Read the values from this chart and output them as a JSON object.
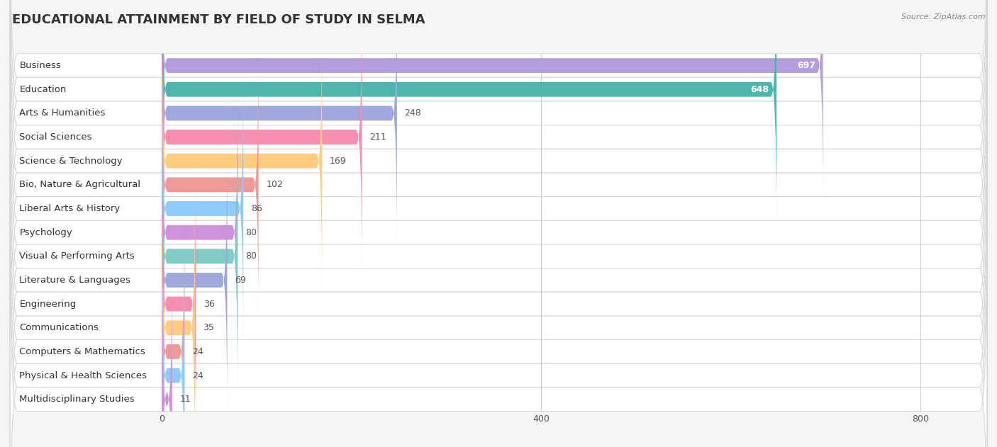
{
  "title": "EDUCATIONAL ATTAINMENT BY FIELD OF STUDY IN SELMA",
  "source": "Source: ZipAtlas.com",
  "categories": [
    "Business",
    "Education",
    "Arts & Humanities",
    "Social Sciences",
    "Science & Technology",
    "Bio, Nature & Agricultural",
    "Liberal Arts & History",
    "Psychology",
    "Visual & Performing Arts",
    "Literature & Languages",
    "Engineering",
    "Communications",
    "Computers & Mathematics",
    "Physical & Health Sciences",
    "Multidisciplinary Studies"
  ],
  "values": [
    697,
    648,
    248,
    211,
    169,
    102,
    86,
    80,
    80,
    69,
    36,
    35,
    24,
    24,
    11
  ],
  "bar_colors": [
    "#b39ddb",
    "#4db6ac",
    "#9fa8da",
    "#f48fb1",
    "#ffcc80",
    "#ef9a9a",
    "#90caf9",
    "#ce93d8",
    "#80cbc4",
    "#9fa8da",
    "#f48fb1",
    "#ffcc80",
    "#ef9a9a",
    "#90caf9",
    "#ce93d8"
  ],
  "data_max": 800,
  "xticks": [
    0,
    400,
    800
  ],
  "background_color": "#f5f5f5",
  "row_bg_color": "#ffffff",
  "row_border_color": "#d8d8d8",
  "title_fontsize": 13,
  "label_fontsize": 9.5,
  "value_fontsize": 9,
  "bar_height": 0.62,
  "label_pill_color": "#ffffff",
  "value_white_threshold": 400
}
